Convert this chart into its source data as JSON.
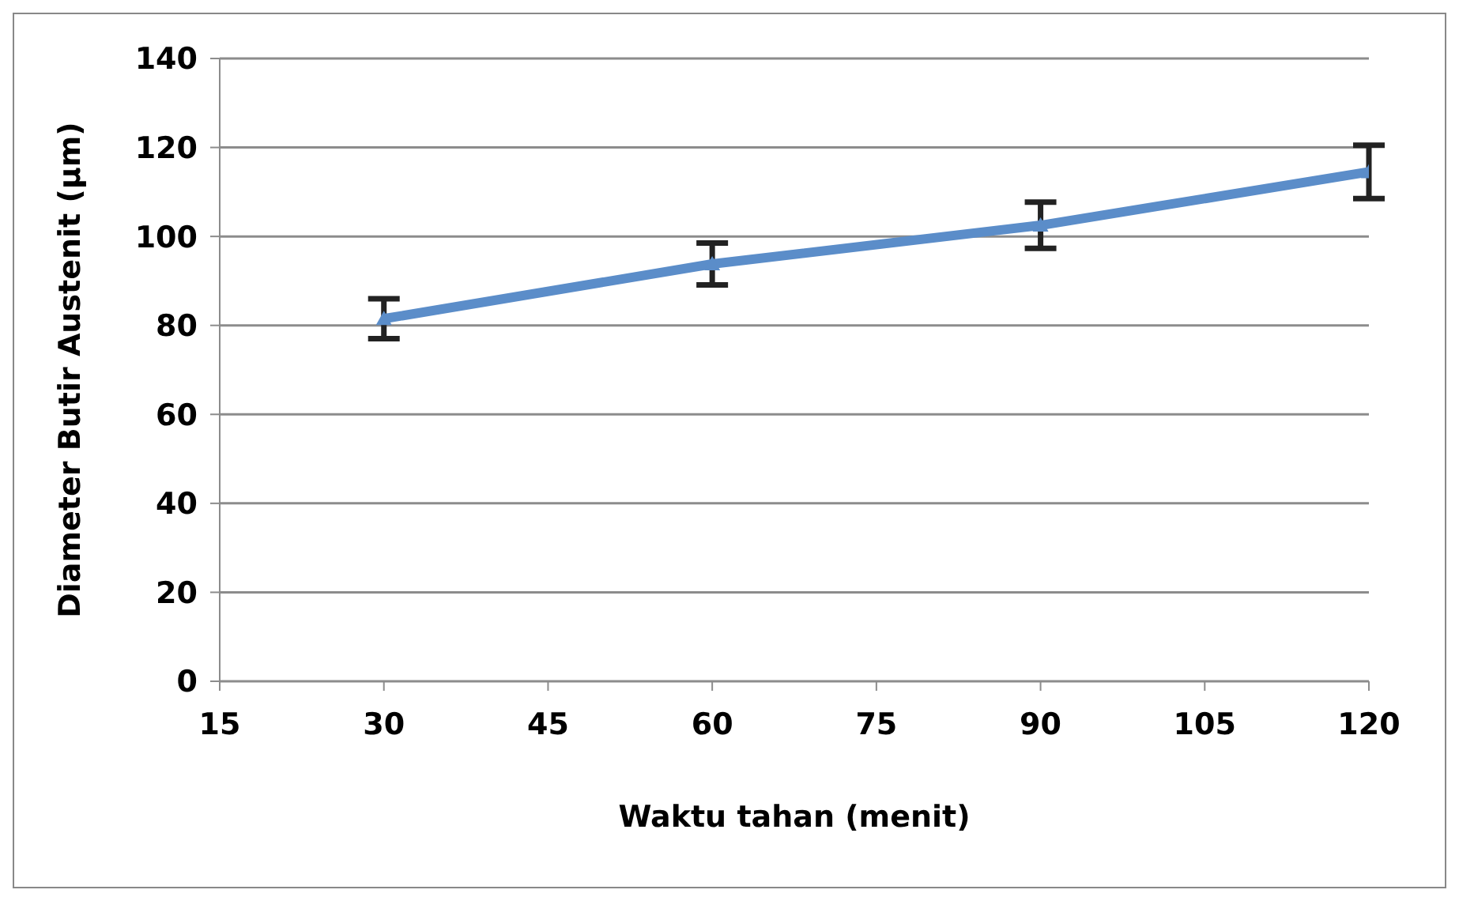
{
  "chart_data": {
    "type": "line",
    "xlabel": "Waktu tahan (menit)",
    "ylabel": "Diameter Butir Austenit (µm)",
    "x": [
      30,
      60,
      90,
      120
    ],
    "series": [
      {
        "color": "#5b8dc9",
        "values": [
          81.5,
          93.8,
          102.5,
          114.5
        ],
        "errors": [
          4.5,
          4.7,
          5.2,
          6
        ]
      }
    ],
    "xlim": [
      15,
      120
    ],
    "xticks": [
      15,
      30,
      45,
      60,
      75,
      90,
      105,
      120
    ],
    "ylim": [
      0,
      140
    ],
    "yticks": [
      0,
      20,
      40,
      60,
      80,
      100,
      120,
      140
    ],
    "grid": "y",
    "marker": "triangle",
    "line_style": "solid"
  }
}
